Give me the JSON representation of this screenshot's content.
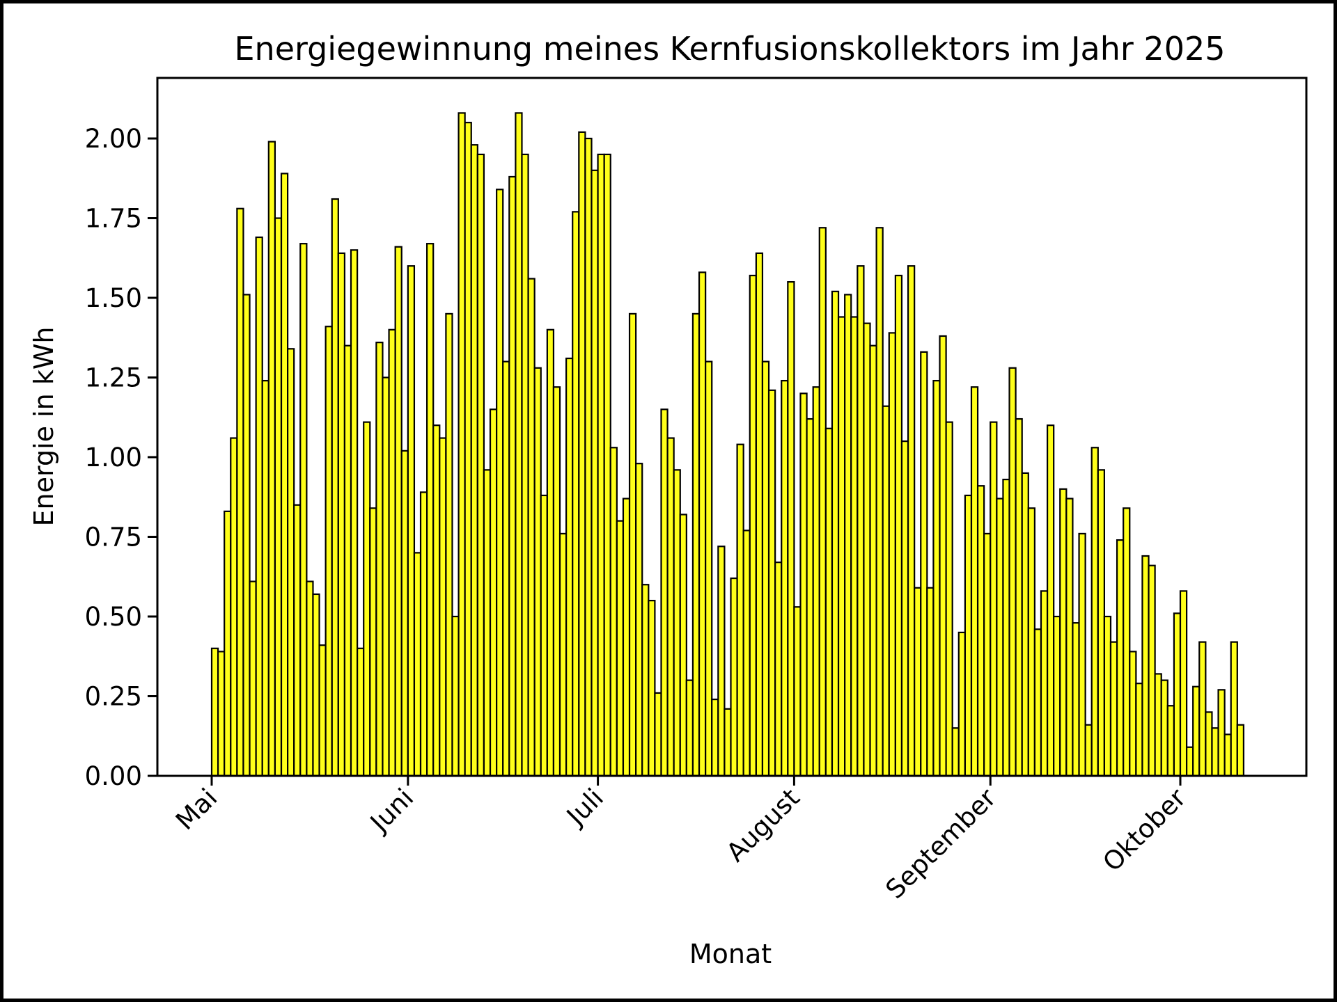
{
  "chart_data": {
    "type": "bar",
    "title": "Energiegewinnung meines Kernfusionskollektors im Jahr 2025",
    "xlabel": "Monat",
    "ylabel": "Energie in kWh",
    "x_start": "2025-04-30",
    "ylim": [
      0,
      2.19
    ],
    "yticks": [
      0.0,
      0.25,
      0.5,
      0.75,
      1.0,
      1.25,
      1.5,
      1.75,
      2.0
    ],
    "ytick_labels": [
      "0.00",
      "0.25",
      "0.50",
      "0.75",
      "1.00",
      "1.25",
      "1.50",
      "1.75",
      "2.00"
    ],
    "xticks": [
      {
        "label": "Mai",
        "date": "2025-05-01"
      },
      {
        "label": "Juni",
        "date": "2025-06-01"
      },
      {
        "label": "Juli",
        "date": "2025-07-01"
      },
      {
        "label": "August",
        "date": "2025-08-01"
      },
      {
        "label": "September",
        "date": "2025-09-01"
      },
      {
        "label": "Oktober",
        "date": "2025-10-01"
      }
    ],
    "bar_color": "#ffff1a",
    "edge_color": "#000000",
    "grid": false,
    "values": [
      0.0,
      0.4,
      0.39,
      0.83,
      1.06,
      1.78,
      1.51,
      0.61,
      1.69,
      1.24,
      1.99,
      1.75,
      1.89,
      1.34,
      0.85,
      1.67,
      0.61,
      0.57,
      0.41,
      1.41,
      1.81,
      1.64,
      1.35,
      1.65,
      0.4,
      1.11,
      0.84,
      1.36,
      1.25,
      1.4,
      1.66,
      1.02,
      1.6,
      0.7,
      0.89,
      1.67,
      1.1,
      1.06,
      1.45,
      0.5,
      2.08,
      2.05,
      1.98,
      1.95,
      0.96,
      1.15,
      1.84,
      1.3,
      1.88,
      2.08,
      1.95,
      1.56,
      1.28,
      0.88,
      1.4,
      1.22,
      0.76,
      1.31,
      1.77,
      2.02,
      2.0,
      1.9,
      1.95,
      1.95,
      1.03,
      0.8,
      0.87,
      1.45,
      0.98,
      0.6,
      0.55,
      0.26,
      1.15,
      1.06,
      0.96,
      0.82,
      0.3,
      1.45,
      1.58,
      1.3,
      0.24,
      0.72,
      0.21,
      0.62,
      1.04,
      0.77,
      1.57,
      1.64,
      1.3,
      1.21,
      0.67,
      1.24,
      1.55,
      0.53,
      1.2,
      1.12,
      1.22,
      1.72,
      1.09,
      1.52,
      1.44,
      1.51,
      1.44,
      1.6,
      1.42,
      1.35,
      1.72,
      1.16,
      1.39,
      1.57,
      1.05,
      1.6,
      0.59,
      1.33,
      0.59,
      1.24,
      1.38,
      1.11,
      0.15,
      0.45,
      0.88,
      1.22,
      0.91,
      0.76,
      1.11,
      0.87,
      0.93,
      1.28,
      1.12,
      0.95,
      0.84,
      0.46,
      0.58,
      1.1,
      0.5,
      0.9,
      0.87,
      0.48,
      0.76,
      0.16,
      1.03,
      0.96,
      0.5,
      0.42,
      0.74,
      0.84,
      0.39,
      0.29,
      0.69,
      0.66,
      0.32,
      0.3,
      0.22,
      0.51,
      0.58,
      0.09,
      0.28,
      0.42,
      0.2,
      0.15,
      0.27,
      0.13,
      0.42,
      0.16
    ]
  }
}
